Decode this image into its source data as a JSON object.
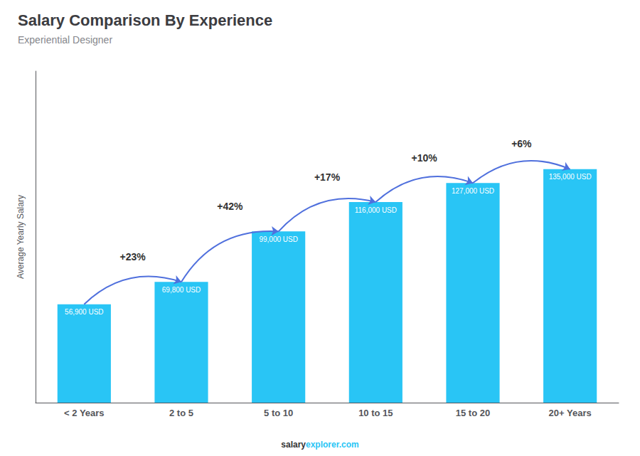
{
  "chart_data": {
    "type": "bar",
    "title": "Salary Comparison By Experience",
    "subtitle": "Experiential Designer",
    "categories": [
      "< 2 Years",
      "2 to 5",
      "5 to 10",
      "10 to 15",
      "15 to 20",
      "20+ Years"
    ],
    "values": [
      56900,
      69800,
      99000,
      116000,
      127000,
      135000
    ],
    "value_labels": [
      "56,900 USD",
      "69,800 USD",
      "99,000 USD",
      "116,000 USD",
      "127,000 USD",
      "135,000 USD"
    ],
    "data_labels": true,
    "color": "#29c5f5",
    "ylabel": "Average Yearly Salary",
    "ylim": [
      0,
      191700
    ],
    "tick_labels": "x",
    "grid": false,
    "annotations": [
      null,
      "+23%",
      "+42%",
      "+17%",
      "+10%",
      "+6%"
    ],
    "footer": [
      "salary",
      "explorer.com"
    ]
  }
}
